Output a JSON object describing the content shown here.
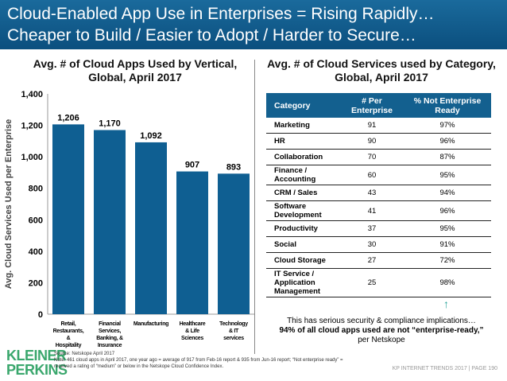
{
  "header": {
    "line1": "Cloud-Enabled App Use in Enterprises = Rising Rapidly…",
    "line2": "Cheaper to Build / Easier to Adopt / Harder to Secure…"
  },
  "chart_data": {
    "type": "bar",
    "title": "Avg. # of Cloud Apps Used by Vertical, Global, April 2017",
    "ylabel": "Avg. Cloud Services Used per Enterprise",
    "xlabel": "",
    "categories": [
      "Retail, Restaurants, & Hospitality",
      "Financial Services, Banking, & Insurance",
      "Manufacturing",
      "Healthcare & Life Sciences",
      "Technology & IT services"
    ],
    "values": [
      1206,
      1170,
      1092,
      907,
      893
    ],
    "value_labels": [
      "1,206",
      "1,170",
      "1,092",
      "907",
      "893"
    ],
    "ylim": [
      0,
      1400
    ],
    "yticks": [
      "0",
      "200",
      "400",
      "600",
      "800",
      "1,000",
      "1,200",
      "1,400"
    ],
    "bar_color": "#0f5f92",
    "grid": false
  },
  "table": {
    "title": "Avg. # of Cloud Services used by Category, Global, April 2017",
    "headers": [
      "Category",
      "# Per Enterprise",
      "% Not Enterprise Ready"
    ],
    "rows": [
      [
        "Marketing",
        "91",
        "97%"
      ],
      [
        "HR",
        "90",
        "96%"
      ],
      [
        "Collaboration",
        "70",
        "87%"
      ],
      [
        "Finance / Accounting",
        "60",
        "95%"
      ],
      [
        "CRM / Sales",
        "43",
        "94%"
      ],
      [
        "Software Development",
        "41",
        "96%"
      ],
      [
        "Productivity",
        "37",
        "95%"
      ],
      [
        "Social",
        "30",
        "91%"
      ],
      [
        "Cloud Storage",
        "27",
        "72%"
      ],
      [
        "IT Service / Application Management",
        "25",
        "98%"
      ]
    ]
  },
  "note": {
    "line1": "This has serious security & compliance implications…",
    "line2": "94% of all cloud apps used are not “enterprise-ready,”",
    "line3": "per Netskope"
  },
  "footer": {
    "source": "Source: Netskope April 2017",
    "note1": "Note: 461 cloud apps in April 2017, one year ago = average of 917 from Feb-16 report & 935 from Jun-16 report; “Not enterprise ready” =",
    "note2": "received a rating of “medium” or below in the Netskope Cloud Confidence Index.",
    "logo": "KLEINER PERKINS",
    "page": "KP INTERNET TRENDS 2017  |  PAGE 190"
  }
}
